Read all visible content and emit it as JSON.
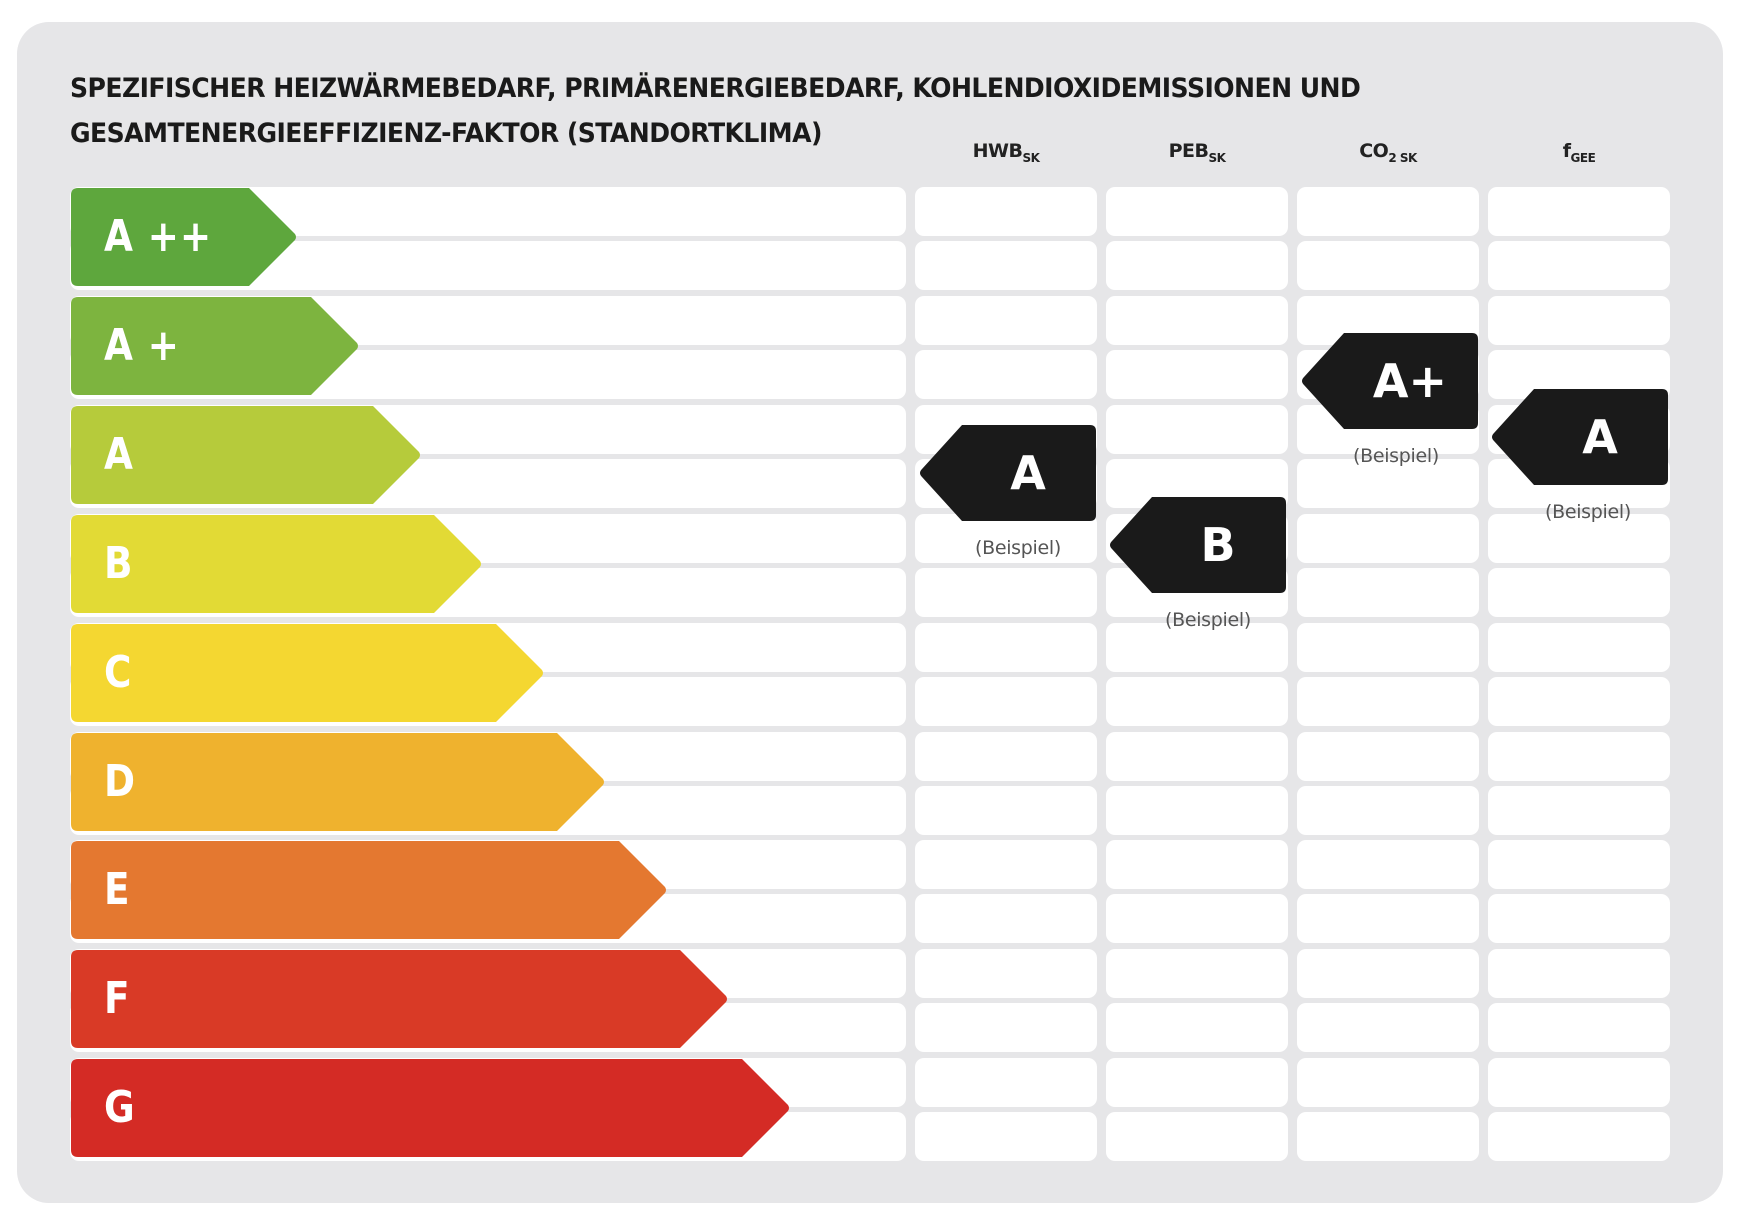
{
  "title": {
    "line1": "SPEZIFISCHER HEIZWÄRMEBEDARF, PRIMÄRENERGIEBEDARF, KOHLENDIOXIDEMISSIONEN UND",
    "line2": "GESAMTENERGIEEFFIZIENZ-FAKTOR (STANDORTKLIMA)"
  },
  "columns": [
    {
      "main": "HWB",
      "sub": "SK"
    },
    {
      "main": "PEB",
      "sub": "SK"
    },
    {
      "main": "CO",
      "mid": "2",
      "sub": " SK"
    },
    {
      "main": "f",
      "sub": "GEE"
    }
  ],
  "classes": [
    {
      "label": "A ++",
      "color": "#5ea73d"
    },
    {
      "label": "A +",
      "color": "#7db43f"
    },
    {
      "label": "A",
      "color": "#b6cb3b"
    },
    {
      "label": "B",
      "color": "#e2da35"
    },
    {
      "label": "C",
      "color": "#f4d731"
    },
    {
      "label": "D",
      "color": "#efb22e"
    },
    {
      "label": "E",
      "color": "#e47830"
    },
    {
      "label": "F",
      "color": "#d93a26"
    },
    {
      "label": "G",
      "color": "#d42b25"
    }
  ],
  "markers": [
    {
      "column": "HWB_SK",
      "label": "A",
      "caption": "(Beispiel)"
    },
    {
      "column": "PEB_SK",
      "label": "B",
      "caption": "(Beispiel)"
    },
    {
      "column": "CO2_SK",
      "label": "A+",
      "caption": "(Beispiel)"
    },
    {
      "column": "f_GEE",
      "label": "A",
      "caption": "(Beispiel)"
    }
  ],
  "colors": {
    "panel_bg": "#e6e6e8",
    "cell_bg": "#ffffff",
    "marker_bg": "#1a1a1a",
    "title_text": "#1a1a1a"
  }
}
